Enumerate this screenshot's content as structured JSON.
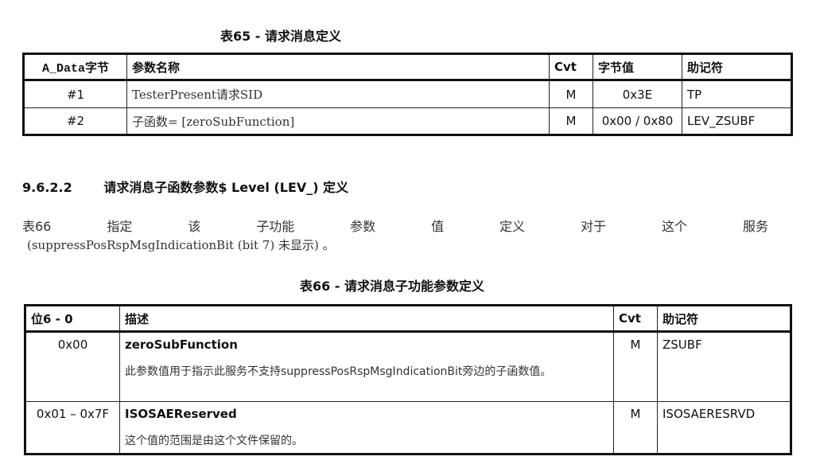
{
  "table65": {
    "title": "表65 - 请求消息定义",
    "headers": [
      "A_Data字节",
      "参数名称",
      "Cvt",
      "字节值",
      "助记符"
    ],
    "rows": [
      [
        "#1",
        "TesterPresent请求SID",
        "M",
        "0x3E",
        "TP"
      ],
      [
        "#2",
        "子函数= [zeroSubFunction]",
        "M",
        "0x00 / 0x80",
        "LEV_ZSUBF"
      ]
    ]
  },
  "section": {
    "number": "9.6.2.2",
    "title": "请求消息子函数参数$ Level (LEV_) 定义"
  },
  "paragraph": {
    "line1_words": [
      "表66",
      "指定",
      "该",
      "子功能",
      "参数",
      "值",
      "定义",
      "对于",
      "这个",
      "服务"
    ],
    "line2": "(suppressPosRspMsgIndicationBit (bit 7) 未显示) 。"
  },
  "table66": {
    "title": "表66 - 请求消息子功能参数定义",
    "headers": [
      "位6 - 0",
      "描述",
      "Cvt",
      "助记符"
    ],
    "rows": [
      {
        "value": "0x00",
        "name": "zeroSubFunction",
        "desc": "此参数值用于指示此服务不支持suppressPosRspMsgIndicationBit旁边的子函数值。",
        "cvt": "M",
        "mnemonic": "ZSUBF"
      },
      {
        "value": "0x01 – 0x7F",
        "name": "ISOSAEReserved",
        "desc": "这个值的范围是由这个文件保留的。",
        "cvt": "M",
        "mnemonic": "ISOSAERESRVD"
      }
    ]
  }
}
